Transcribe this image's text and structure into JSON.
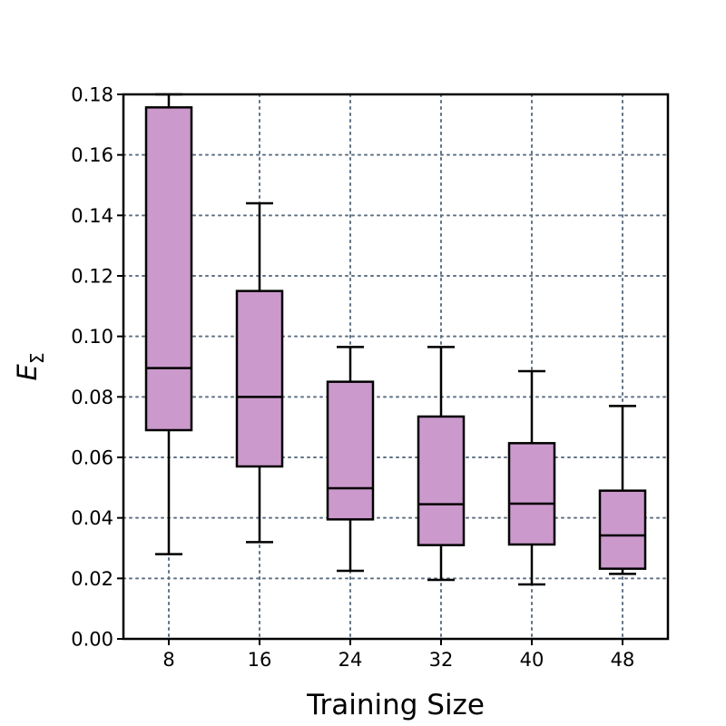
{
  "chart_data": {
    "type": "box",
    "xlabel": "Training Size",
    "ylabel_main": "E",
    "ylabel_sub": "Σ",
    "ylim": [
      0.0,
      0.18
    ],
    "yticks": [
      "0.00",
      "0.02",
      "0.04",
      "0.06",
      "0.08",
      "0.10",
      "0.12",
      "0.14",
      "0.16",
      "0.18"
    ],
    "ytick_values": [
      0.0,
      0.02,
      0.04,
      0.06,
      0.08,
      0.1,
      0.12,
      0.14,
      0.16,
      0.18
    ],
    "categories": [
      "8",
      "16",
      "24",
      "32",
      "40",
      "48"
    ],
    "boxes": [
      {
        "category": "8",
        "whisker_low": 0.028,
        "q1": 0.069,
        "median": 0.0895,
        "q3": 0.1757,
        "whisker_high": 0.18
      },
      {
        "category": "16",
        "whisker_low": 0.032,
        "q1": 0.057,
        "median": 0.08,
        "q3": 0.115,
        "whisker_high": 0.144
      },
      {
        "category": "24",
        "whisker_low": 0.0225,
        "q1": 0.0395,
        "median": 0.0498,
        "q3": 0.085,
        "whisker_high": 0.0965
      },
      {
        "category": "32",
        "whisker_low": 0.0195,
        "q1": 0.031,
        "median": 0.0445,
        "q3": 0.0735,
        "whisker_high": 0.0965
      },
      {
        "category": "40",
        "whisker_low": 0.018,
        "q1": 0.0312,
        "median": 0.0447,
        "q3": 0.0647,
        "whisker_high": 0.0885
      },
      {
        "category": "48",
        "whisker_low": 0.0215,
        "q1": 0.0232,
        "median": 0.0342,
        "q3": 0.049,
        "whisker_high": 0.077
      }
    ],
    "grid": true,
    "box_color": "#cc99cc",
    "edge_color": "#000000",
    "grid_color": "#5f7184"
  }
}
